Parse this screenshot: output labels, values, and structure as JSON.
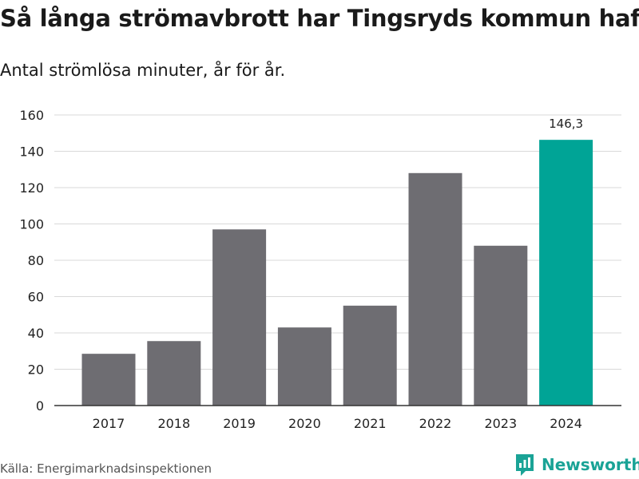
{
  "title": "Så långa strömavbrott har Tingsryds kommun haft",
  "subtitle": "Antal strömlösa minuter, år för år.",
  "source": "Källa: Energimarknadsinspektionen",
  "brand": "Newsworthy",
  "colors": {
    "bar": "#6e6d72",
    "highlight": "#00a496",
    "grid": "#d9d9d9",
    "axis": "#333333",
    "brand": "#1aa396"
  },
  "chart_data": {
    "type": "bar",
    "title": "Så långa strömavbrott har Tingsryds kommun haft",
    "subtitle": "Antal strömlösa minuter, år för år.",
    "xlabel": "",
    "ylabel": "",
    "categories": [
      "2017",
      "2018",
      "2019",
      "2020",
      "2021",
      "2022",
      "2023",
      "2024"
    ],
    "values": [
      28.5,
      35.5,
      97,
      43,
      55,
      128,
      88,
      146.3
    ],
    "highlight_index": 7,
    "data_labels": [
      {
        "index": 7,
        "text": "146,3"
      }
    ],
    "ylim": [
      0,
      160
    ],
    "yticks": [
      0,
      20,
      40,
      60,
      80,
      100,
      120,
      140,
      160
    ],
    "grid": true
  }
}
